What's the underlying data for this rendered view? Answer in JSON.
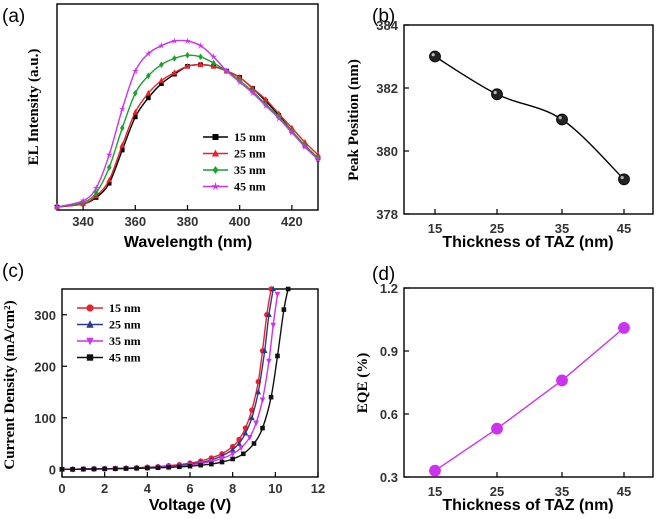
{
  "chart_data": [
    {
      "panel": "(a)",
      "type": "line",
      "xlabel": "Wavelength (nm)",
      "ylabel": "EL Intensity (a.u.)",
      "xlim": [
        330,
        430
      ],
      "xticks": [
        340,
        360,
        380,
        400,
        420
      ],
      "series": [
        {
          "name": "15 nm",
          "color": "#000000",
          "marker": "square",
          "x": [
            330,
            340,
            345,
            350,
            355,
            360,
            365,
            370,
            375,
            380,
            385,
            390,
            395,
            400,
            405,
            410,
            415,
            420,
            425,
            430
          ],
          "y": [
            0.0,
            0.02,
            0.06,
            0.15,
            0.36,
            0.57,
            0.69,
            0.78,
            0.84,
            0.89,
            0.9,
            0.89,
            0.86,
            0.82,
            0.75,
            0.67,
            0.58,
            0.48,
            0.39,
            0.31
          ]
        },
        {
          "name": "25 nm",
          "color": "#e8212b",
          "marker": "triangle",
          "x": [
            330,
            340,
            345,
            350,
            355,
            360,
            365,
            370,
            375,
            380,
            385,
            390,
            395,
            400,
            405,
            410,
            415,
            420,
            425,
            430
          ],
          "y": [
            0.0,
            0.02,
            0.07,
            0.17,
            0.39,
            0.6,
            0.72,
            0.8,
            0.85,
            0.89,
            0.9,
            0.89,
            0.86,
            0.82,
            0.75,
            0.68,
            0.59,
            0.5,
            0.41,
            0.33
          ]
        },
        {
          "name": "35 nm",
          "color": "#1aa12e",
          "marker": "diamond",
          "x": [
            330,
            340,
            345,
            350,
            355,
            360,
            365,
            370,
            375,
            380,
            385,
            390,
            395,
            400,
            405,
            410,
            415,
            420,
            425,
            430
          ],
          "y": [
            0.0,
            0.03,
            0.09,
            0.25,
            0.5,
            0.72,
            0.83,
            0.9,
            0.94,
            0.96,
            0.95,
            0.91,
            0.86,
            0.8,
            0.73,
            0.65,
            0.57,
            0.48,
            0.39,
            0.31
          ]
        },
        {
          "name": "45 nm",
          "color": "#cc33ee",
          "marker": "star",
          "x": [
            330,
            340,
            345,
            350,
            355,
            360,
            365,
            370,
            375,
            380,
            385,
            390,
            395,
            400,
            405,
            410,
            415,
            420,
            425,
            430
          ],
          "y": [
            0.0,
            0.04,
            0.12,
            0.33,
            0.62,
            0.86,
            0.97,
            1.02,
            1.05,
            1.05,
            1.02,
            0.95,
            0.86,
            0.79,
            0.72,
            0.64,
            0.56,
            0.47,
            0.38,
            0.3
          ]
        }
      ]
    },
    {
      "panel": "(b)",
      "type": "line",
      "xlabel": "Thickness of TAZ (nm)",
      "ylabel": "Peak Position (nm)",
      "ylim": [
        378,
        384
      ],
      "yticks": [
        378,
        380,
        382,
        384
      ],
      "categories": [
        "15",
        "25",
        "35",
        "45"
      ],
      "values": [
        383.0,
        381.8,
        381.0,
        379.1
      ],
      "color": "#000000"
    },
    {
      "panel": "(c)",
      "type": "line",
      "xlabel": "Voltage (V)",
      "ylabel": "Current Density (mA/cm²)",
      "xlim": [
        0,
        12
      ],
      "ylim": [
        -15,
        350
      ],
      "xticks": [
        0,
        2,
        4,
        6,
        8,
        10,
        12
      ],
      "yticks": [
        0,
        100,
        200,
        300
      ],
      "series": [
        {
          "name": "15 nm",
          "color": "#e8212b",
          "marker": "circle",
          "x": [
            0,
            0.5,
            1,
            1.5,
            2,
            2.5,
            3,
            3.5,
            4,
            4.5,
            5,
            5.5,
            6,
            6.5,
            7,
            7.5,
            8,
            8.3,
            8.6,
            8.9,
            9.2,
            9.4,
            9.6,
            9.8
          ],
          "y": [
            0,
            0,
            0.5,
            0.8,
            1,
            1.5,
            2,
            3,
            4,
            5,
            7,
            9,
            12,
            16,
            22,
            30,
            44,
            58,
            80,
            115,
            170,
            230,
            300,
            350
          ]
        },
        {
          "name": "25 nm",
          "color": "#2b3a8f",
          "marker": "triangle",
          "x": [
            0,
            0.5,
            1,
            1.5,
            2,
            2.5,
            3,
            3.5,
            4,
            4.5,
            5,
            5.5,
            6,
            6.5,
            7,
            7.5,
            8,
            8.3,
            8.6,
            8.9,
            9.2,
            9.5,
            9.7,
            9.9
          ],
          "y": [
            0,
            0,
            0.5,
            0.8,
            1,
            1.5,
            2,
            2.5,
            3.5,
            4.5,
            6,
            8,
            10,
            13,
            18,
            26,
            38,
            50,
            70,
            100,
            150,
            230,
            300,
            350
          ]
        },
        {
          "name": "35 nm",
          "color": "#cc33ee",
          "marker": "triangle-down",
          "x": [
            0,
            0.5,
            1,
            1.5,
            2,
            2.5,
            3,
            3.5,
            4,
            4.5,
            5,
            5.5,
            6,
            6.5,
            7,
            7.5,
            8,
            8.4,
            8.8,
            9.1,
            9.4,
            9.7,
            9.9,
            10.1
          ],
          "y": [
            0,
            0,
            0.4,
            0.7,
            1,
            1.3,
            1.8,
            2.3,
            3,
            4,
            5,
            6.5,
            8.5,
            11,
            15,
            21,
            30,
            42,
            62,
            90,
            135,
            210,
            280,
            340
          ]
        },
        {
          "name": "45 nm",
          "color": "#111111",
          "marker": "square",
          "x": [
            0,
            0.5,
            1,
            1.5,
            2,
            2.5,
            3,
            3.5,
            4,
            4.5,
            5,
            5.5,
            6,
            6.5,
            7,
            7.5,
            8,
            8.5,
            9,
            9.4,
            9.8,
            10.1,
            10.4,
            10.6
          ],
          "y": [
            0,
            0,
            0.3,
            0.5,
            0.8,
            1,
            1.4,
            1.8,
            2.3,
            3,
            3.8,
            4.8,
            6,
            8,
            10,
            14,
            20,
            30,
            50,
            80,
            140,
            220,
            310,
            360
          ]
        }
      ]
    },
    {
      "panel": "(d)",
      "type": "line",
      "xlabel": "Thickness of TAZ (nm)",
      "ylabel": "EQE (%)",
      "ylim": [
        0.3,
        1.2
      ],
      "yticks": [
        "0.3",
        "0.6",
        "0.9",
        "1.2"
      ],
      "categories": [
        "15",
        "25",
        "35",
        "45"
      ],
      "values": [
        0.33,
        0.53,
        0.76,
        1.01
      ],
      "color": "#cc33ee"
    }
  ]
}
